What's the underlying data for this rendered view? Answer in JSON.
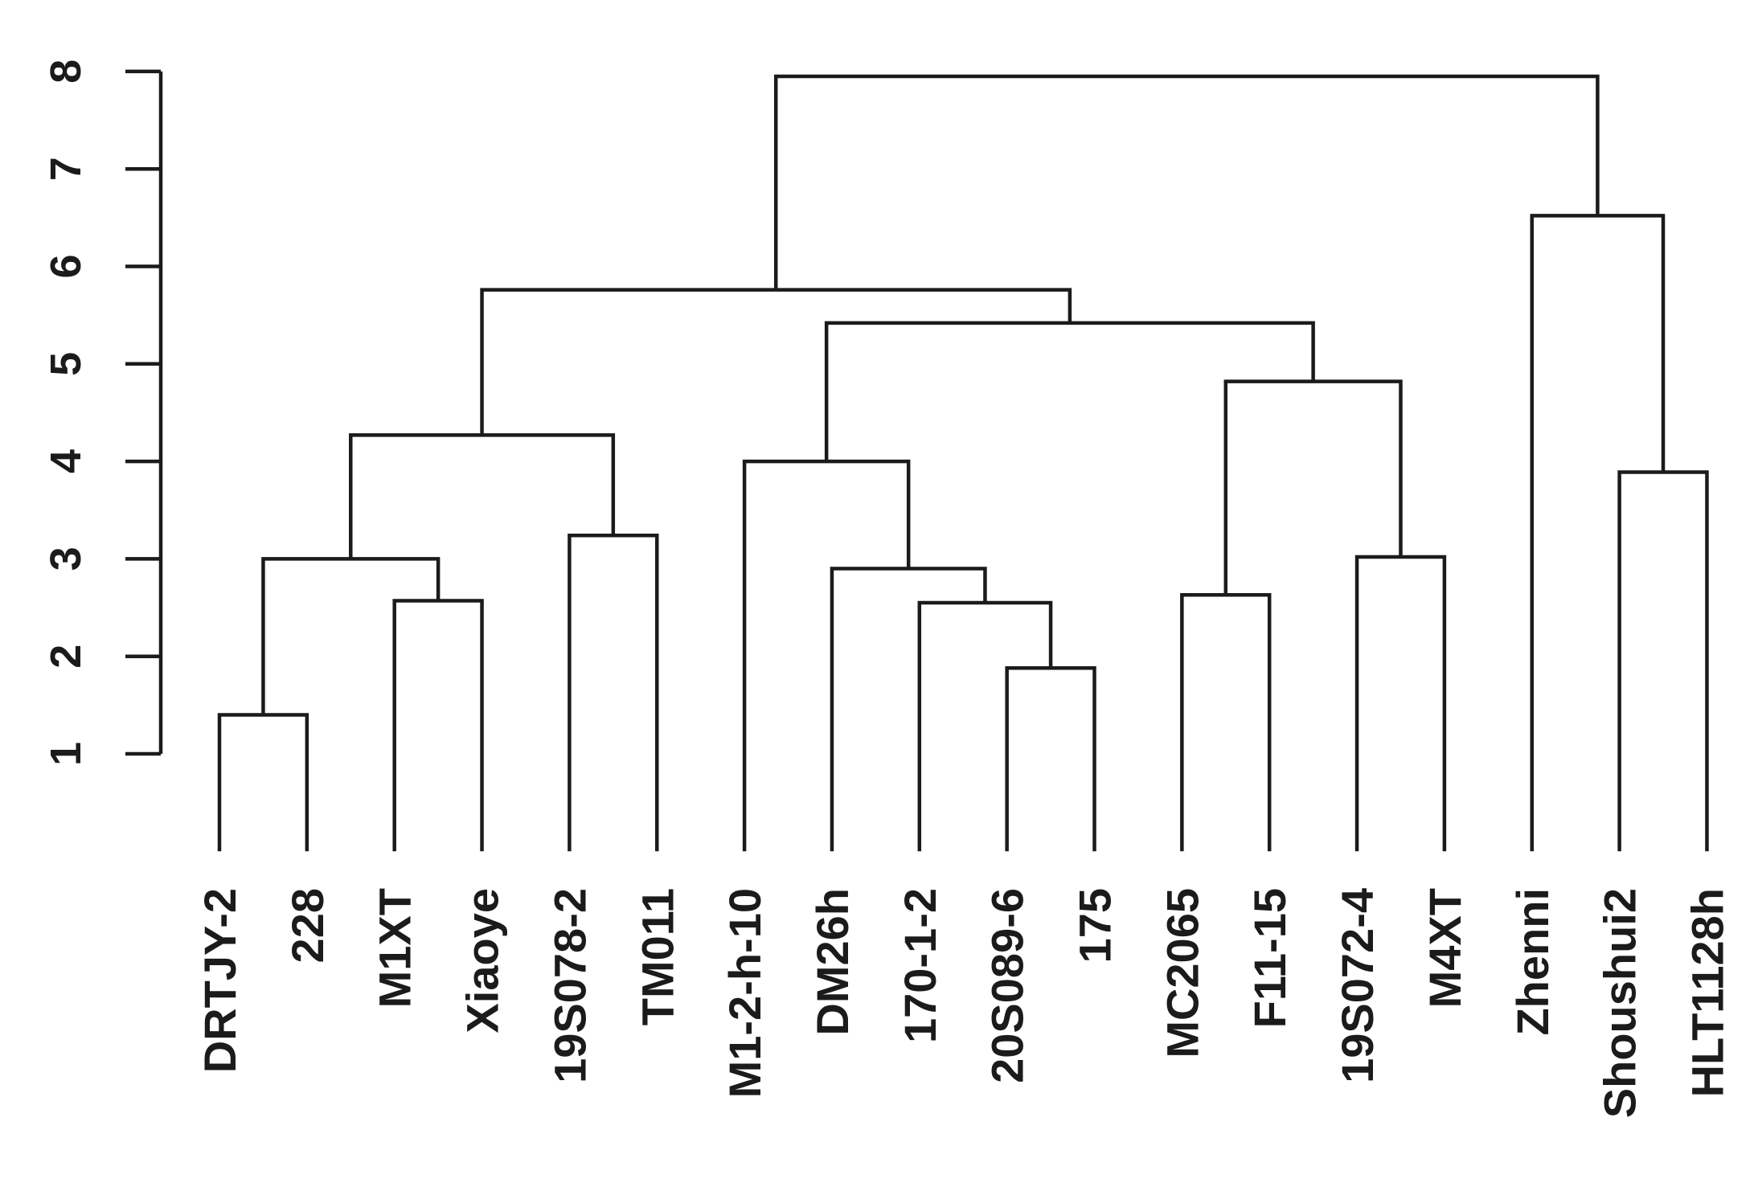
{
  "chart_data": {
    "type": "dendrogram",
    "title": "",
    "xlabel": "",
    "ylabel": "",
    "yticks": [
      1,
      2,
      3,
      4,
      5,
      6,
      7,
      8
    ],
    "ylim": [
      1,
      8
    ],
    "legend": "none",
    "grid": false,
    "orientation": "vertical-top-root",
    "leaf_baseline_height": 0,
    "leaves": [
      "DRTJY-2",
      "228",
      "M1XT",
      "Xiaoye",
      "19S078-2",
      "TM011",
      "M1-2-h-10",
      "DM26h",
      "170-1-2",
      "20S089-6",
      "175",
      "MC2065",
      "F11-15",
      "19S072-4",
      "M4XT",
      "Zhenni",
      "Shoushui2",
      "HLT1128h"
    ],
    "merges": [
      {
        "id": "n1",
        "left": "DRTJY-2",
        "right": "228",
        "height": 1.4
      },
      {
        "id": "n2",
        "left": "M1XT",
        "right": "Xiaoye",
        "height": 2.57
      },
      {
        "id": "n3",
        "left": "n1",
        "right": "n2",
        "height": 3.0
      },
      {
        "id": "n4",
        "left": "19S078-2",
        "right": "TM011",
        "height": 3.24
      },
      {
        "id": "n5",
        "left": "n3",
        "right": "n4",
        "height": 4.27
      },
      {
        "id": "n6",
        "left": "20S089-6",
        "right": "175",
        "height": 1.88
      },
      {
        "id": "n7",
        "left": "170-1-2",
        "right": "n6",
        "height": 2.55
      },
      {
        "id": "n8",
        "left": "DM26h",
        "right": "n7",
        "height": 2.9
      },
      {
        "id": "n9",
        "left": "M1-2-h-10",
        "right": "n8",
        "height": 4.0
      },
      {
        "id": "n10",
        "left": "MC2065",
        "right": "F11-15",
        "height": 2.63
      },
      {
        "id": "n11",
        "left": "19S072-4",
        "right": "M4XT",
        "height": 3.02
      },
      {
        "id": "n12",
        "left": "n10",
        "right": "n11",
        "height": 4.82
      },
      {
        "id": "n13",
        "left": "n9",
        "right": "n12",
        "height": 5.42
      },
      {
        "id": "n14",
        "left": "n5",
        "right": "n13",
        "height": 5.76
      },
      {
        "id": "n15",
        "left": "Shoushui2",
        "right": "HLT1128h",
        "height": 3.89
      },
      {
        "id": "n16",
        "left": "Zhenni",
        "right": "n15",
        "height": 6.52
      },
      {
        "id": "n17",
        "left": "n14",
        "right": "n16",
        "height": 7.95
      }
    ],
    "line_color": "#1b1b1b",
    "background": "#ffffff"
  }
}
